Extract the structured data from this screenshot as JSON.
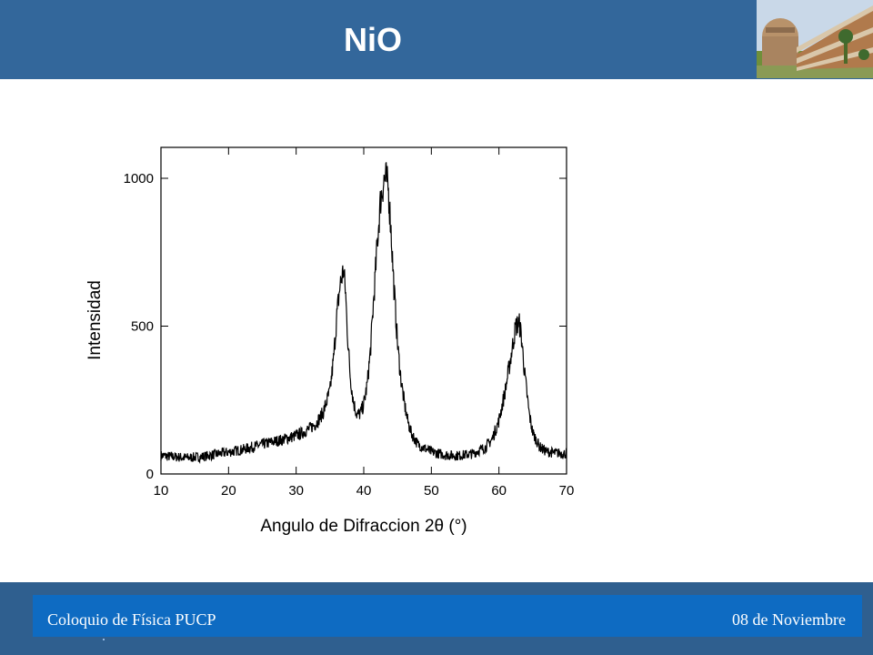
{
  "header": {
    "title": "NiO",
    "photo_icon": "building-photo"
  },
  "footer": {
    "left_text": "Coloquio de Física PUCP",
    "right_text": "08 de Noviembre"
  },
  "colors": {
    "header_bg": "#33679b",
    "footer_bg": "#2f5f8f",
    "footer_bar": "#0e6bc2",
    "curve": "#000000"
  },
  "chart_data": {
    "type": "line",
    "title": "",
    "xlabel": "Angulo de Difraccion 2θ (°)",
    "ylabel": "Intensidad",
    "xlim": [
      10,
      70
    ],
    "ylim": [
      0,
      1000
    ],
    "xticks": [
      10,
      20,
      30,
      40,
      50,
      60,
      70
    ],
    "yticks": [
      0,
      500,
      1000
    ],
    "grid": false,
    "legend": "none",
    "series": [
      {
        "x": [
          10,
          12,
          14,
          16,
          18,
          20,
          22,
          24,
          26,
          28,
          30,
          31,
          32,
          33,
          34,
          35,
          35.5,
          36,
          36.5,
          37,
          37.3,
          37.6,
          38,
          38.5,
          39,
          39.5,
          40,
          40.5,
          41,
          41.5,
          42,
          42.5,
          43,
          43.3,
          43.6,
          44,
          44.5,
          45,
          45.5,
          46,
          46.5,
          47,
          48,
          50,
          52,
          54,
          56,
          58,
          59,
          60,
          61,
          62,
          62.5,
          63,
          63.3,
          63.8,
          64.5,
          65,
          66,
          67,
          68,
          70
        ],
        "y": [
          62,
          58,
          55,
          58,
          66,
          74,
          82,
          94,
          106,
          116,
          130,
          140,
          154,
          172,
          208,
          280,
          380,
          530,
          640,
          690,
          620,
          470,
          330,
          240,
          200,
          205,
          235,
          300,
          420,
          600,
          780,
          930,
          995,
          1000,
          970,
          840,
          620,
          440,
          320,
          240,
          180,
          140,
          100,
          75,
          64,
          62,
          68,
          90,
          118,
          180,
          290,
          430,
          500,
          510,
          470,
          340,
          200,
          140,
          92,
          76,
          72,
          68
        ]
      }
    ]
  }
}
